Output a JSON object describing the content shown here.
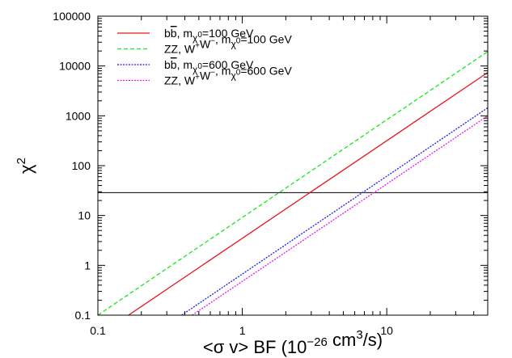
{
  "chart_data": {
    "type": "line",
    "x_scale": "log",
    "y_scale": "log",
    "xlim": [
      0.1,
      50
    ],
    "ylim": [
      0.1,
      100000
    ],
    "x_ticks": [
      {
        "value": 0.1,
        "label": "0.1"
      },
      {
        "value": 1,
        "label": "1"
      },
      {
        "value": 10,
        "label": "10"
      }
    ],
    "y_ticks": [
      {
        "value": 0.1,
        "label": "0.1"
      },
      {
        "value": 1,
        "label": "1"
      },
      {
        "value": 10,
        "label": "10"
      },
      {
        "value": 100,
        "label": "100"
      },
      {
        "value": 1000,
        "label": "1000"
      },
      {
        "value": 10000,
        "label": "10000"
      },
      {
        "value": 100000,
        "label": "100000"
      }
    ],
    "xlabel": {
      "prefix": "<σ v> BF (10",
      "exp1": "−26",
      "mid": " cm",
      "exp2": "3",
      "suffix": "/s)"
    },
    "ylabel": {
      "base": "χ",
      "exp": "2"
    },
    "legend_position": "top-left",
    "threshold_line": {
      "y": 28.7,
      "color": "#000000"
    },
    "series": [
      {
        "name": "bb̄, mχ0=100 GeV",
        "color": "#e8161b",
        "dash": "solid",
        "x": [
          0.163,
          50
        ],
        "y": [
          0.1,
          7400
        ]
      },
      {
        "name": "ZZ, W+W−,  mχ0=100 GeV",
        "color": "#18e81a",
        "dash": "dashed",
        "x": [
          0.1,
          50
        ],
        "y": [
          0.1,
          19500
        ]
      },
      {
        "name": "bb̄,  mχ0=600 GeV",
        "color": "#1a1ae8",
        "dash": "dotted",
        "x": [
          0.38,
          50
        ],
        "y": [
          0.1,
          1450
        ]
      },
      {
        "name": "ZZ, W+W−,  mχ0=600 GeV",
        "color": "#e81ae8",
        "dash": "dotted",
        "x": [
          0.45,
          50
        ],
        "y": [
          0.1,
          1000
        ]
      }
    ],
    "legend": [
      {
        "label_parts": [
          {
            "t": "b"
          },
          {
            "t": "b",
            "over": true
          },
          {
            "t": ", m"
          },
          {
            "t": "χ",
            "sub": true
          },
          {
            "t": "0",
            "supsub": true
          },
          {
            "t": "=100 GeV"
          }
        ]
      },
      {
        "label_parts": [
          {
            "t": "ZZ, W"
          },
          {
            "t": "+",
            "sup": true
          },
          {
            "t": "W"
          },
          {
            "t": "−",
            "sup": true
          },
          {
            "t": ",  m"
          },
          {
            "t": "χ",
            "sub": true
          },
          {
            "t": "0",
            "supsub": true
          },
          {
            "t": "=100 GeV"
          }
        ]
      },
      {
        "label_parts": [
          {
            "t": "b"
          },
          {
            "t": "b",
            "over": true
          },
          {
            "t": ",  m"
          },
          {
            "t": "χ",
            "sub": true
          },
          {
            "t": "0",
            "supsub": true
          },
          {
            "t": "=600 GeV"
          }
        ]
      },
      {
        "label_parts": [
          {
            "t": "ZZ, W"
          },
          {
            "t": "+",
            "sup": true
          },
          {
            "t": "W"
          },
          {
            "t": "−",
            "sup": true
          },
          {
            "t": ",  m"
          },
          {
            "t": "χ",
            "sub": true
          },
          {
            "t": "0",
            "supsub": true
          },
          {
            "t": "=600 GeV"
          }
        ]
      }
    ]
  }
}
